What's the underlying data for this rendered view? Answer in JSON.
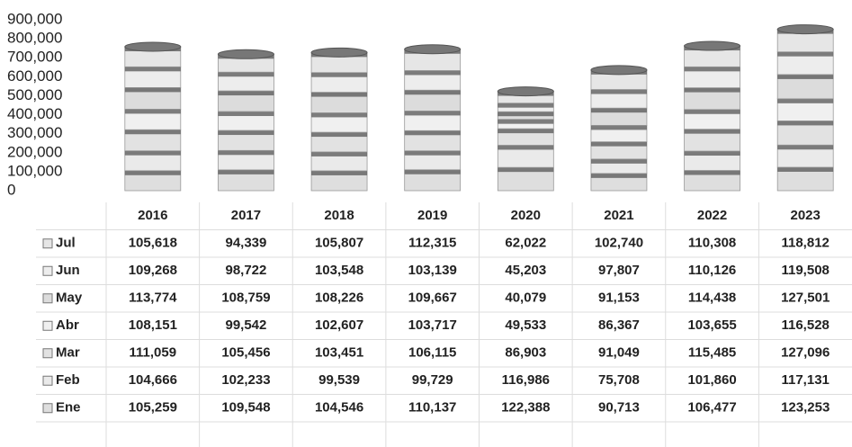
{
  "chart_data": {
    "type": "bar",
    "stacked": true,
    "categories": [
      "2016",
      "2017",
      "2018",
      "2019",
      "2020",
      "2021",
      "2022",
      "2023"
    ],
    "series": [
      {
        "name": "Jul",
        "color": "#e6e6e6",
        "values": [
          105618,
          94339,
          105807,
          112315,
          62022,
          102740,
          110308,
          118812
        ],
        "value_labels": [
          "105,618",
          "94,339",
          "105,807",
          "112,315",
          "62,022",
          "102,740",
          "110,308",
          "118,812"
        ]
      },
      {
        "name": "Jun",
        "color": "#ededed",
        "values": [
          109268,
          98722,
          103548,
          103139,
          45203,
          97807,
          110126,
          119508
        ],
        "value_labels": [
          "109,268",
          "98,722",
          "103,548",
          "103,139",
          "45,203",
          "97,807",
          "110,126",
          "119,508"
        ]
      },
      {
        "name": "May",
        "color": "#dcdcdc",
        "values": [
          113774,
          108759,
          108226,
          109667,
          40079,
          91153,
          114438,
          127501
        ],
        "value_labels": [
          "113,774",
          "108,759",
          "108,226",
          "109,667",
          "40,079",
          "91,153",
          "114,438",
          "127,501"
        ]
      },
      {
        "name": "Abr",
        "color": "#f0f0f0",
        "values": [
          108151,
          99542,
          102607,
          103717,
          49533,
          86367,
          103655,
          116528
        ],
        "value_labels": [
          "108,151",
          "99,542",
          "102,607",
          "103,717",
          "49,533",
          "86,367",
          "103,655",
          "116,528"
        ]
      },
      {
        "name": "Mar",
        "color": "#e2e2e2",
        "values": [
          111059,
          105456,
          103451,
          106115,
          86903,
          91049,
          115485,
          127096
        ],
        "value_labels": [
          "111,059",
          "105,456",
          "103,451",
          "106,115",
          "86,903",
          "91,049",
          "115,485",
          "127,096"
        ]
      },
      {
        "name": "Feb",
        "color": "#eaeaea",
        "values": [
          104666,
          102233,
          99539,
          99729,
          116986,
          75708,
          101860,
          117131
        ],
        "value_labels": [
          "104,666",
          "102,233",
          "99,539",
          "99,729",
          "116,986",
          "75,708",
          "101,860",
          "117,131"
        ]
      },
      {
        "name": "Ene",
        "color": "#dedede",
        "values": [
          105259,
          109548,
          104546,
          110137,
          122388,
          90713,
          106477,
          123253
        ],
        "value_labels": [
          "105,259",
          "109,548",
          "104,546",
          "110,137",
          "122,388",
          "90,713",
          "106,477",
          "123,253"
        ]
      }
    ],
    "ylim": [
      0,
      900000
    ],
    "yticks": [
      0,
      {
        "value": 100000,
        "label": "100,000"
      },
      {
        "value": 200000,
        "label": "200,000"
      },
      {
        "value": 300000,
        "label": "300,000"
      },
      {
        "value": 400000,
        "label": "400,000"
      },
      {
        "value": 500000,
        "label": "500,000"
      },
      {
        "value": 600000,
        "label": "600,000"
      },
      {
        "value": 700000,
        "label": "700,000"
      },
      {
        "value": 800000,
        "label": "800,000"
      },
      {
        "value": 900000,
        "label": "900,000"
      }
    ],
    "grid": false
  }
}
